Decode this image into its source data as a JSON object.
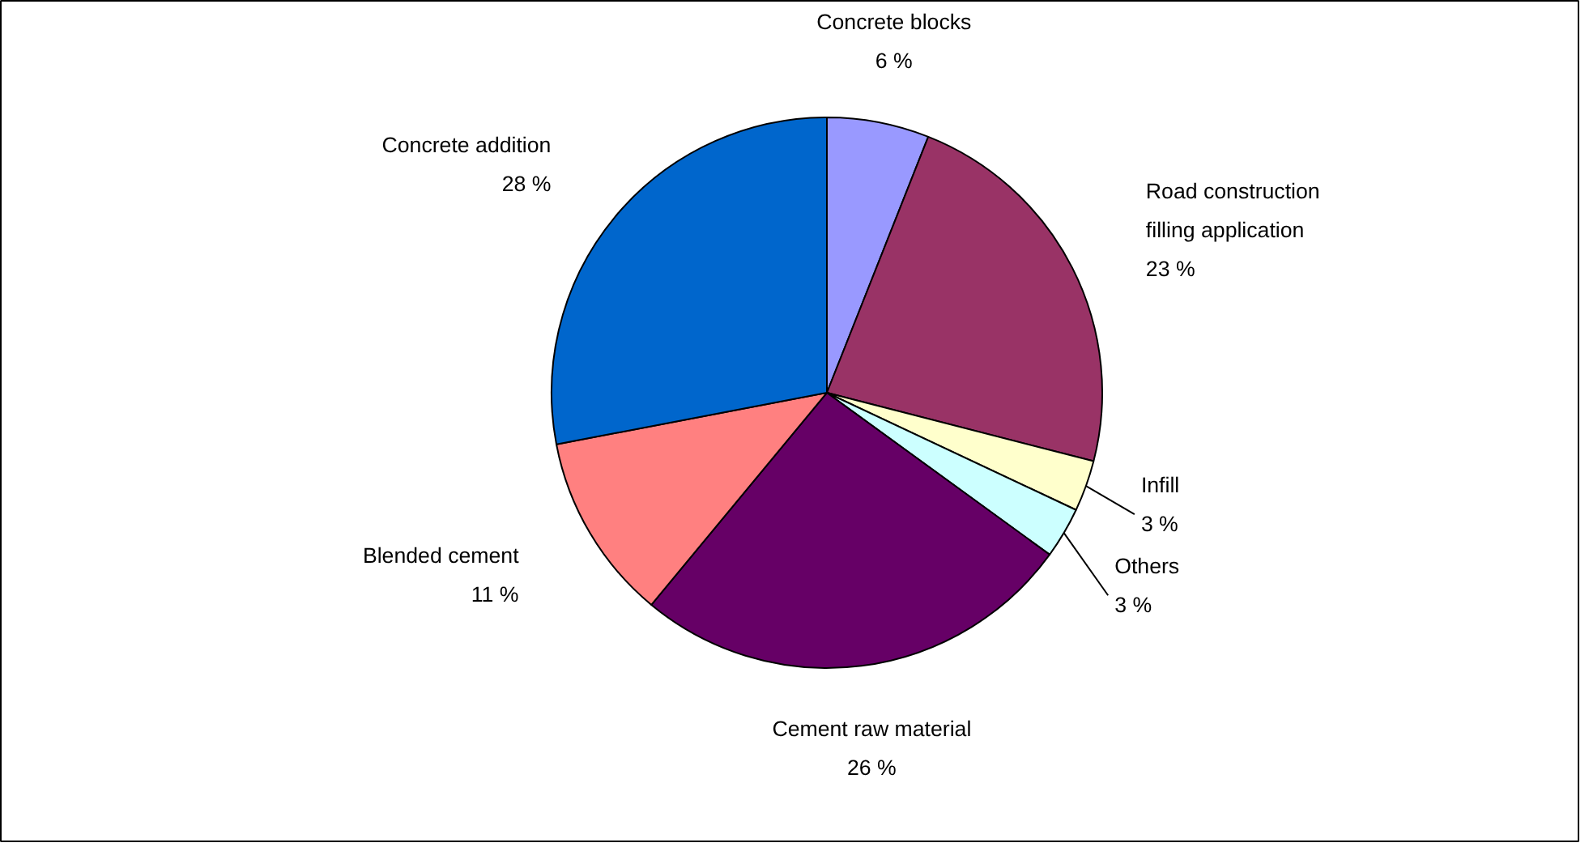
{
  "chart_data": {
    "type": "pie",
    "categories": [
      "Concrete blocks",
      "Road construction filling application",
      "Infill",
      "Others",
      "Cement raw material",
      "Blended cement",
      "Concrete addition"
    ],
    "values": [
      6,
      23,
      3,
      3,
      26,
      11,
      28
    ],
    "value_labels": [
      "6 %",
      "23 %",
      "3 %",
      "3 %",
      "26 %",
      "11 %",
      "28 %"
    ],
    "colors": [
      "#9999ff",
      "#993366",
      "#ffffcc",
      "#ccffff",
      "#660066",
      "#ff8080",
      "#0066cc"
    ]
  }
}
